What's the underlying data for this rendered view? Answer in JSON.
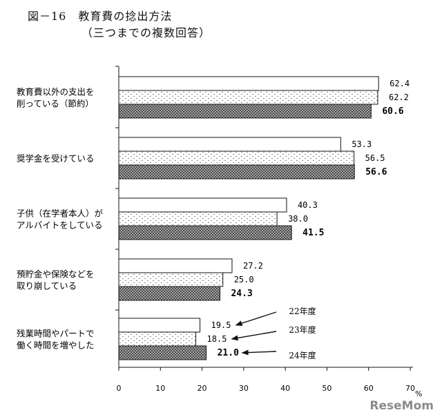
{
  "title_main": "図－16　教育費の捻出方法",
  "title_sub": "（三つまでの複数回答）",
  "watermark": "ReseMom",
  "chart_data": {
    "type": "bar",
    "orientation": "horizontal",
    "categories": [
      [
        "教育費以外の支出を",
        "削っている（節約）"
      ],
      [
        "奨学金を受けている"
      ],
      [
        "子供（在学者本人）が",
        "アルバイトをしている"
      ],
      [
        "預貯金や保険などを",
        "取り崩している"
      ],
      [
        "残業時間やパートで",
        "働く時間を増やした"
      ]
    ],
    "series": [
      {
        "name": "22年度",
        "values": [
          62.4,
          53.3,
          40.3,
          27.2,
          19.5
        ],
        "fill": "white"
      },
      {
        "name": "23年度",
        "values": [
          62.2,
          56.5,
          38.0,
          25.0,
          18.5
        ],
        "fill": "dots"
      },
      {
        "name": "24年度",
        "values": [
          60.6,
          56.6,
          41.5,
          24.3,
          21.0
        ],
        "fill": "crosshatch"
      }
    ],
    "value_labels": [
      [
        "62.4",
        "62.2",
        "60.6"
      ],
      [
        "53.3",
        "56.5",
        "56.6"
      ],
      [
        "40.3",
        "38.0",
        "41.5"
      ],
      [
        "27.2",
        "25.0",
        "24.3"
      ],
      [
        "19.5",
        "18.5",
        "21.0"
      ]
    ],
    "bold_series_index": 2,
    "xlim": [
      0,
      70
    ],
    "xticks": [
      0,
      10,
      20,
      30,
      40,
      50,
      60,
      70
    ],
    "xunit": "%",
    "grid": false,
    "legend": "arrows pointing to the last category's bars"
  }
}
